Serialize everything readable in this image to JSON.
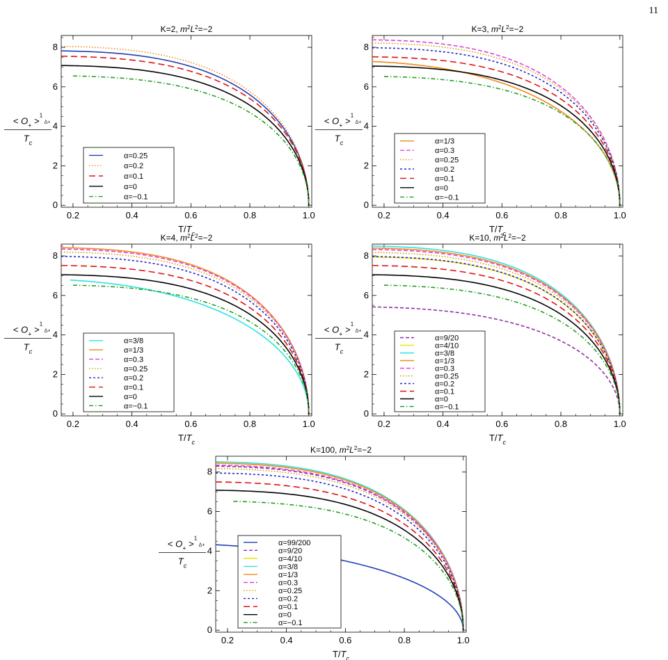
{
  "page_number": "11",
  "styles": {
    "alpha=99/200": {
      "color": "#1f3fb4",
      "dash": ""
    },
    "alpha=9/20": {
      "color": "#8e2e9e",
      "dash": "5,3"
    },
    "alpha=4/10": {
      "color": "#f2e400",
      "dash": ""
    },
    "alpha=3/8": {
      "color": "#2de0e0",
      "dash": ""
    },
    "alpha=1/3": {
      "color": "#f08a1a",
      "dash": ""
    },
    "alpha=0.3": {
      "color": "#e040e0",
      "dash": "6,3"
    },
    "alpha=0.25": {
      "color": "#c9a000",
      "dash": "1.5,2.5"
    },
    "alpha=0.2": {
      "color": "#2020d0",
      "dash": "3,3"
    },
    "alpha=0.1": {
      "color": "#e01010",
      "dash": "9,5"
    },
    "alpha=0": {
      "color": "#000000",
      "dash": ""
    },
    "alpha=-0.1": {
      "color": "#22a022",
      "dash": "6,3,1.5,3"
    }
  },
  "chart_data": [
    {
      "type": "line",
      "title": "K=2, m²L²=−2",
      "title_parts": {
        "pre": "K=2, ",
        "m": "m",
        "sup1": "2",
        "L": "L",
        "sup2": "2",
        "post": "=−2"
      },
      "xlabel": {
        "main": "T/",
        "var": "T",
        "sub": "c"
      },
      "ylabel": {
        "O": "< O",
        "sub": "+",
        "gt": " >",
        "exp_num": "1",
        "exp_den": "Δ+",
        "den": "T",
        "den_sub": "c"
      },
      "xlim": [
        0.16,
        1.01
      ],
      "ylim": [
        -0.1,
        8.6
      ],
      "xticks": [
        "0.2",
        "0.4",
        "0.6",
        "0.8",
        "1.0"
      ],
      "yticks": [
        "0",
        "2",
        "4",
        "6",
        "8"
      ],
      "legend": {
        "position": "lower-left"
      },
      "series": [
        {
          "name": "α=0.25",
          "style": "alpha=0.25",
          "color_override": "#1f3fb4",
          "dash_override": "",
          "x0": 0.16,
          "y0": 7.82
        },
        {
          "name": "α=0.2",
          "style": "alpha=0.2",
          "color_override": "#f08a1a",
          "dash_override": "1.5,2.5",
          "x0": 0.16,
          "y0": 8.05
        },
        {
          "name": "α=0.1",
          "style": "alpha=0.1",
          "x0": 0.16,
          "y0": 7.55
        },
        {
          "name": "α=0",
          "style": "alpha=0",
          "x0": 0.16,
          "y0": 7.08
        },
        {
          "name": "α=−0.1",
          "style": "alpha=-0.1",
          "x0": 0.2,
          "y0": 6.55
        }
      ]
    },
    {
      "type": "line",
      "title": "K=3, m²L²=−2",
      "title_parts": {
        "pre": "K=3, ",
        "m": "m",
        "sup1": "2",
        "L": "L",
        "sup2": "2",
        "post": "=−2"
      },
      "xlabel": {
        "main": "T/",
        "var": "T",
        "sub": "c"
      },
      "ylabel": {
        "O": "< O",
        "sub": "+",
        "gt": " >",
        "exp_num": "1",
        "exp_den": "Δ+",
        "den": "T",
        "den_sub": "c"
      },
      "xlim": [
        0.16,
        1.01
      ],
      "ylim": [
        -0.1,
        8.6
      ],
      "xticks": [
        "0.2",
        "0.4",
        "0.6",
        "0.8",
        "1.0"
      ],
      "yticks": [
        "0",
        "2",
        "4",
        "6",
        "8"
      ],
      "legend": {
        "position": "lower-left"
      },
      "series": [
        {
          "name": "α=1/3",
          "style": "alpha=1/3",
          "x0": 0.16,
          "y0": 7.28,
          "shape": 1.3
        },
        {
          "name": "α=0.3",
          "style": "alpha=0.3",
          "x0": 0.16,
          "y0": 8.38
        },
        {
          "name": "α=0.25",
          "style": "alpha=0.25",
          "x0": 0.16,
          "y0": 8.22
        },
        {
          "name": "α=0.2",
          "style": "alpha=0.2",
          "x0": 0.16,
          "y0": 7.98
        },
        {
          "name": "α=0.1",
          "style": "alpha=0.1",
          "x0": 0.16,
          "y0": 7.52
        },
        {
          "name": "α=0",
          "style": "alpha=0",
          "x0": 0.16,
          "y0": 7.05
        },
        {
          "name": "α=−0.1",
          "style": "alpha=-0.1",
          "x0": 0.2,
          "y0": 6.52
        }
      ]
    },
    {
      "type": "line",
      "title": "K=4, m²L²=−2",
      "title_parts": {
        "pre": "K=4, ",
        "m": "m",
        "sup1": "2",
        "L": "L",
        "sup2": "2",
        "post": "=−2"
      },
      "xlabel": {
        "main": "T/",
        "var": "T",
        "sub": "c"
      },
      "ylabel": {
        "O": "< O",
        "sub": "+",
        "gt": " >",
        "exp_num": "1",
        "exp_den": "Δ+",
        "den": "T",
        "den_sub": "c"
      },
      "xlim": [
        0.16,
        1.01
      ],
      "ylim": [
        -0.1,
        8.6
      ],
      "xticks": [
        "0.2",
        "0.4",
        "0.6",
        "0.8",
        "1.0"
      ],
      "yticks": [
        "0",
        "2",
        "4",
        "6",
        "8"
      ],
      "legend": {
        "position": "lower-left"
      },
      "series": [
        {
          "name": "α=3/8",
          "style": "alpha=3/8",
          "x0": 0.19,
          "y0": 6.78,
          "shape": 1.35
        },
        {
          "name": "α=1/3",
          "style": "alpha=1/3",
          "x0": 0.16,
          "y0": 8.42
        },
        {
          "name": "α=0.3",
          "style": "alpha=0.3",
          "x0": 0.16,
          "y0": 8.35
        },
        {
          "name": "α=0.25",
          "style": "alpha=0.25",
          "x0": 0.16,
          "y0": 8.2
        },
        {
          "name": "α=0.2",
          "style": "alpha=0.2",
          "x0": 0.16,
          "y0": 7.98
        },
        {
          "name": "α=0.1",
          "style": "alpha=0.1",
          "x0": 0.16,
          "y0": 7.52
        },
        {
          "name": "α=0",
          "style": "alpha=0",
          "x0": 0.16,
          "y0": 7.05
        },
        {
          "name": "α=−0.1",
          "style": "alpha=-0.1",
          "x0": 0.2,
          "y0": 6.52
        }
      ]
    },
    {
      "type": "line",
      "title": "K=10, m²L²=−2",
      "title_parts": {
        "pre": "K=10, ",
        "m": "m",
        "sup1": "2",
        "L": "L",
        "sup2": "2",
        "post": "=−2"
      },
      "xlabel": {
        "main": "T/",
        "var": "T",
        "sub": "c"
      },
      "ylabel": {
        "O": "< O",
        "sub": "+",
        "gt": " >",
        "exp_num": "1",
        "exp_den": "Δ+",
        "den": "T",
        "den_sub": "c"
      },
      "xlim": [
        0.16,
        1.01
      ],
      "ylim": [
        -0.1,
        8.6
      ],
      "xticks": [
        "0.2",
        "0.4",
        "0.6",
        "0.8",
        "1.0"
      ],
      "yticks": [
        "0",
        "2",
        "4",
        "6",
        "8"
      ],
      "legend": {
        "position": "lower-left"
      },
      "series": [
        {
          "name": "α=9/20",
          "style": "alpha=9/20",
          "x0": 0.16,
          "y0": 5.42,
          "shape": 1.15
        },
        {
          "name": "α=4/10",
          "style": "alpha=4/10",
          "x0": 0.16,
          "y0": 7.95
        },
        {
          "name": "α=3/8",
          "style": "alpha=3/8",
          "x0": 0.16,
          "y0": 8.5
        },
        {
          "name": "α=1/3",
          "style": "alpha=1/3",
          "x0": 0.16,
          "y0": 8.4
        },
        {
          "name": "α=0.3",
          "style": "alpha=0.3",
          "x0": 0.16,
          "y0": 8.33
        },
        {
          "name": "α=0.25",
          "style": "alpha=0.25",
          "x0": 0.16,
          "y0": 8.18
        },
        {
          "name": "α=0.2",
          "style": "alpha=0.2",
          "x0": 0.16,
          "y0": 7.97
        },
        {
          "name": "α=0.1",
          "style": "alpha=0.1",
          "x0": 0.16,
          "y0": 7.52
        },
        {
          "name": "α=0",
          "style": "alpha=0",
          "x0": 0.16,
          "y0": 7.05
        },
        {
          "name": "α=−0.1",
          "style": "alpha=-0.1",
          "x0": 0.2,
          "y0": 6.52
        }
      ]
    },
    {
      "type": "line",
      "title": "K=100, m²L²=−2",
      "title_parts": {
        "pre": "K=100, ",
        "m": "m",
        "sup1": "2",
        "L": "L",
        "sup2": "2",
        "post": "=−2"
      },
      "xlabel": {
        "main": "T/",
        "var": "T",
        "sub": "c"
      },
      "ylabel": {
        "O": "< O",
        "sub": "+",
        "gt": " >",
        "exp_num": "1",
        "exp_den": "Δ+",
        "den": "T",
        "den_sub": "c"
      },
      "xlim": [
        0.16,
        1.01
      ],
      "ylim": [
        -0.1,
        8.8
      ],
      "xticks": [
        "0.2",
        "0.4",
        "0.6",
        "0.8",
        "1.0"
      ],
      "yticks": [
        "0",
        "2",
        "4",
        "6",
        "8"
      ],
      "legend": {
        "position": "lower-left"
      },
      "series": [
        {
          "name": "α=99/200",
          "style": "alpha=99/200",
          "x0": 0.16,
          "y0": 4.32,
          "shape": 1.6
        },
        {
          "name": "α=9/20",
          "style": "alpha=9/20",
          "x0": 0.16,
          "y0": 8.3
        },
        {
          "name": "α=4/10",
          "style": "alpha=4/10",
          "x0": 0.16,
          "y0": 8.45
        },
        {
          "name": "α=3/8",
          "style": "alpha=3/8",
          "x0": 0.16,
          "y0": 8.52
        },
        {
          "name": "α=1/3",
          "style": "alpha=1/3",
          "x0": 0.16,
          "y0": 8.45
        },
        {
          "name": "α=0.3",
          "style": "alpha=0.3",
          "x0": 0.16,
          "y0": 8.35
        },
        {
          "name": "α=0.25",
          "style": "alpha=0.25",
          "x0": 0.16,
          "y0": 8.18
        },
        {
          "name": "α=0.2",
          "style": "alpha=0.2",
          "x0": 0.16,
          "y0": 7.95
        },
        {
          "name": "α=0.1",
          "style": "alpha=0.1",
          "x0": 0.16,
          "y0": 7.5
        },
        {
          "name": "α=0",
          "style": "alpha=0",
          "x0": 0.16,
          "y0": 7.08
        },
        {
          "name": "α=−0.1",
          "style": "alpha=-0.1",
          "x0": 0.22,
          "y0": 6.52
        }
      ]
    }
  ]
}
